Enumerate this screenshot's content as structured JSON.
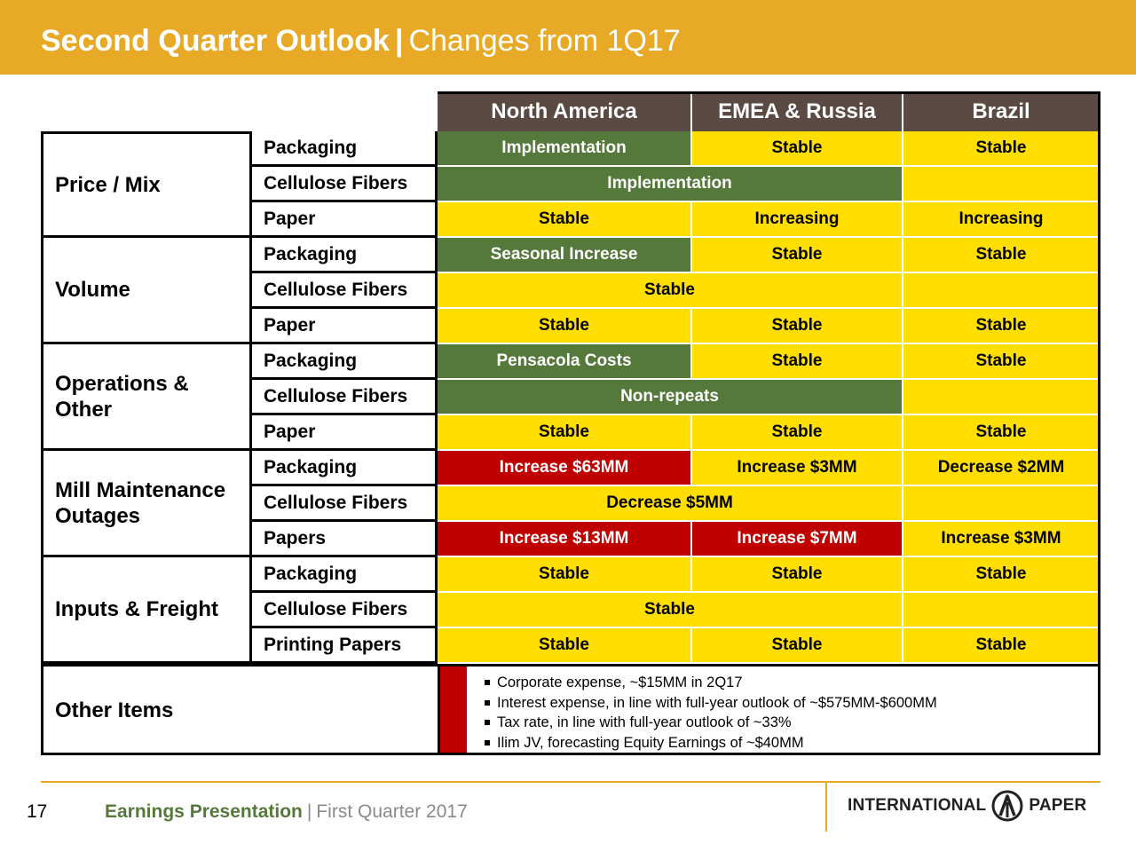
{
  "header": {
    "title_main": "Second Quarter Outlook",
    "title_sep": "|",
    "title_sub": "Changes from 1Q17"
  },
  "columns": [
    "North America",
    "EMEA & Russia",
    "Brazil"
  ],
  "categories": [
    {
      "label": "Price / Mix",
      "rows": [
        {
          "label": "Packaging",
          "cells": [
            {
              "text": "Implementation",
              "color": "green"
            },
            {
              "text": "Stable",
              "color": "yellow"
            },
            {
              "text": "Stable",
              "color": "yellow"
            }
          ]
        },
        {
          "label": "Cellulose Fibers",
          "cells": [
            {
              "text": "Implementation",
              "color": "green",
              "span": 2
            },
            {
              "text": "",
              "color": "yellow"
            }
          ]
        },
        {
          "label": "Paper",
          "cells": [
            {
              "text": "Stable",
              "color": "yellow"
            },
            {
              "text": "Increasing",
              "color": "yellow"
            },
            {
              "text": "Increasing",
              "color": "yellow"
            }
          ]
        }
      ]
    },
    {
      "label": "Volume",
      "rows": [
        {
          "label": "Packaging",
          "cells": [
            {
              "text": "Seasonal Increase",
              "color": "green"
            },
            {
              "text": "Stable",
              "color": "yellow"
            },
            {
              "text": "Stable",
              "color": "yellow"
            }
          ]
        },
        {
          "label": "Cellulose Fibers",
          "cells": [
            {
              "text": "Stable",
              "color": "yellow",
              "span": 2
            },
            {
              "text": "",
              "color": "yellow"
            }
          ]
        },
        {
          "label": "Paper",
          "cells": [
            {
              "text": "Stable",
              "color": "yellow"
            },
            {
              "text": "Stable",
              "color": "yellow"
            },
            {
              "text": "Stable",
              "color": "yellow"
            }
          ]
        }
      ]
    },
    {
      "label": "Operations & Other",
      "rows": [
        {
          "label": "Packaging",
          "cells": [
            {
              "text": "Pensacola Costs",
              "color": "green"
            },
            {
              "text": "Stable",
              "color": "yellow"
            },
            {
              "text": "Stable",
              "color": "yellow"
            }
          ]
        },
        {
          "label": "Cellulose Fibers",
          "cells": [
            {
              "text": "Non-repeats",
              "color": "green",
              "span": 2
            },
            {
              "text": "",
              "color": "yellow"
            }
          ]
        },
        {
          "label": "Paper",
          "cells": [
            {
              "text": "Stable",
              "color": "yellow"
            },
            {
              "text": "Stable",
              "color": "yellow"
            },
            {
              "text": "Stable",
              "color": "yellow"
            }
          ]
        }
      ]
    },
    {
      "label": "Mill Maintenance Outages",
      "rows": [
        {
          "label": "Packaging",
          "cells": [
            {
              "text": "Increase $63MM",
              "color": "red"
            },
            {
              "text": "Increase $3MM",
              "color": "yellow"
            },
            {
              "text": "Decrease $2MM",
              "color": "yellow"
            }
          ]
        },
        {
          "label": "Cellulose Fibers",
          "cells": [
            {
              "text": "Decrease $5MM",
              "color": "yellow",
              "span": 2
            },
            {
              "text": "",
              "color": "yellow"
            }
          ]
        },
        {
          "label": "Papers",
          "cells": [
            {
              "text": "Increase $13MM",
              "color": "red"
            },
            {
              "text": "Increase $7MM",
              "color": "red"
            },
            {
              "text": "Increase $3MM",
              "color": "yellow"
            }
          ]
        }
      ]
    },
    {
      "label": "Inputs & Freight",
      "rows": [
        {
          "label": "Packaging",
          "cells": [
            {
              "text": "Stable",
              "color": "yellow"
            },
            {
              "text": "Stable",
              "color": "yellow"
            },
            {
              "text": "Stable",
              "color": "yellow"
            }
          ]
        },
        {
          "label": "Cellulose Fibers",
          "cells": [
            {
              "text": "Stable",
              "color": "yellow",
              "span": 2
            },
            {
              "text": "",
              "color": "yellow"
            }
          ]
        },
        {
          "label": "Printing Papers",
          "cells": [
            {
              "text": "Stable",
              "color": "yellow"
            },
            {
              "text": "Stable",
              "color": "yellow"
            },
            {
              "text": "Stable",
              "color": "yellow"
            }
          ]
        }
      ]
    }
  ],
  "other_items": {
    "label": "Other Items",
    "bullets": [
      "Corporate expense, ~$15MM in 2Q17",
      "Interest expense, in line with full-year outlook of ~$575MM-$600MM",
      "Tax rate, in line with full-year outlook of ~33%",
      "Ilim JV, forecasting Equity Earnings of ~$40MM"
    ]
  },
  "footer": {
    "page_number": "17",
    "presentation": "Earnings Presentation",
    "separator": "|",
    "period": "First Quarter 2017",
    "logo_left": "INTERNATIONAL",
    "logo_right": "PAPER",
    "logo_icon": "international-paper-logo-icon"
  },
  "colors": {
    "header_bg": "#E8A927",
    "column_header_bg": "#5A4A43",
    "green": "#55793A",
    "yellow": "#FFDE00",
    "red": "#C00000"
  }
}
